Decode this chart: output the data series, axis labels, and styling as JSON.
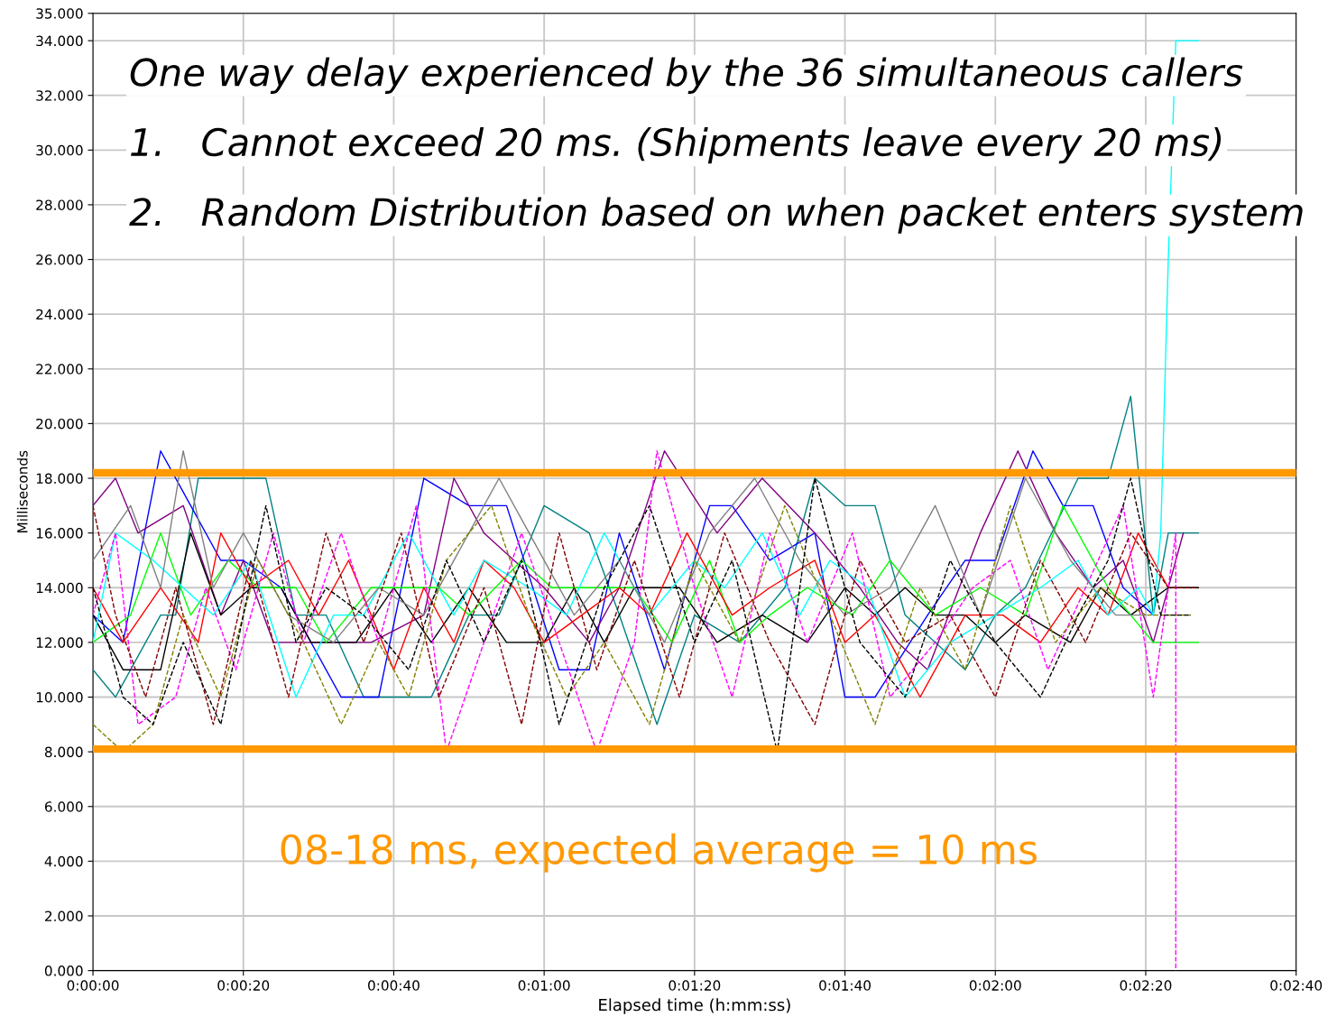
{
  "chart_data": {
    "type": "line",
    "title": "One way delay experienced by the 36 simultaneous callers",
    "annotations": [
      "1.   Cannot exceed 20 ms. (Shipments leave every 20 ms)",
      "2.   Random Distribution based on when packet enters system",
      "08-18 ms, expected average = 10 ms"
    ],
    "xlabel": "Elapsed time (h:mm:ss)",
    "ylabel": "Milliseconds",
    "xlim": [
      0,
      160
    ],
    "xticks": [
      {
        "value": 0,
        "label": "0:00:00"
      },
      {
        "value": 20,
        "label": "0:00:20"
      },
      {
        "value": 40,
        "label": "0:00:40"
      },
      {
        "value": 60,
        "label": "0:01:00"
      },
      {
        "value": 80,
        "label": "0:01:20"
      },
      {
        "value": 100,
        "label": "0:01:40"
      },
      {
        "value": 120,
        "label": "0:02:00"
      },
      {
        "value": 140,
        "label": "0:02:20"
      },
      {
        "value": 160,
        "label": "0:02:40"
      }
    ],
    "ylim": [
      0,
      35
    ],
    "yticks": [
      {
        "value": 0,
        "label": "0.000"
      },
      {
        "value": 2,
        "label": "2.000"
      },
      {
        "value": 4,
        "label": "4.000"
      },
      {
        "value": 6,
        "label": "6.000"
      },
      {
        "value": 8,
        "label": "8.000"
      },
      {
        "value": 10,
        "label": "10.000"
      },
      {
        "value": 12,
        "label": "12.000"
      },
      {
        "value": 14,
        "label": "14.000"
      },
      {
        "value": 16,
        "label": "16.000"
      },
      {
        "value": 18,
        "label": "18.000"
      },
      {
        "value": 20,
        "label": "20.000"
      },
      {
        "value": 22,
        "label": "22.000"
      },
      {
        "value": 24,
        "label": "24.000"
      },
      {
        "value": 26,
        "label": "26.000"
      },
      {
        "value": 28,
        "label": "28.000"
      },
      {
        "value": 30,
        "label": "30.000"
      },
      {
        "value": 32,
        "label": "32.000"
      },
      {
        "value": 34,
        "label": "34.000"
      },
      {
        "value": 35,
        "label": "35.000"
      }
    ],
    "grid": true,
    "legend": false,
    "ref_lines": [
      {
        "axis": "y",
        "value": 18.2,
        "color": "#ff9900"
      },
      {
        "axis": "y",
        "value": 8.1,
        "color": "#ff9900"
      }
    ],
    "series": [
      {
        "color": "#008080",
        "line_style": "solid",
        "x": [
          0,
          3,
          9,
          11,
          14,
          23,
          27,
          31,
          36,
          45,
          50,
          54,
          60,
          66,
          70,
          75,
          80,
          86,
          92,
          96,
          100,
          104,
          108,
          116,
          120,
          124,
          131,
          135,
          138,
          141,
          143,
          147
        ],
        "values": [
          11,
          10,
          13,
          13,
          18,
          18,
          13,
          13,
          10,
          10,
          13,
          13,
          17,
          16,
          13,
          9,
          13,
          12,
          14,
          18,
          17,
          17,
          13,
          11,
          13,
          14,
          18,
          18,
          21,
          13,
          16,
          16
        ]
      },
      {
        "color": "#0000ff",
        "line_style": "solid",
        "x": [
          0,
          4,
          9,
          13,
          17,
          20,
          25,
          33,
          38,
          44,
          50,
          55,
          62,
          66,
          70,
          76,
          82,
          85,
          90,
          96,
          100,
          104,
          111,
          116,
          120,
          125,
          129,
          133,
          137,
          141
        ],
        "values": [
          13,
          12,
          19,
          17,
          15,
          15,
          14,
          10,
          10,
          18,
          17,
          17,
          11,
          11,
          16,
          11,
          17,
          17,
          15,
          16,
          10,
          10,
          13,
          15,
          15,
          19,
          17,
          17,
          14,
          13
        ]
      },
      {
        "color": "#800080",
        "line_style": "solid",
        "x": [
          0,
          3,
          6,
          12,
          17,
          20,
          24,
          30,
          37,
          44,
          48,
          52,
          60,
          66,
          70,
          76,
          83,
          89,
          96,
          102,
          107,
          111,
          118,
          123,
          128,
          133,
          137,
          141,
          145
        ],
        "values": [
          17,
          18,
          16,
          17,
          13,
          15,
          12,
          12,
          12,
          13,
          18,
          16,
          14,
          12,
          14,
          19,
          16,
          18,
          16,
          14,
          12,
          11,
          16,
          19,
          16,
          14,
          15,
          12,
          16
        ]
      },
      {
        "color": "#000000",
        "line_style": "solid",
        "x": [
          0,
          4,
          9,
          13,
          17,
          21,
          25,
          29,
          35,
          40,
          45,
          50,
          55,
          60,
          64,
          68,
          72,
          78,
          83,
          89,
          95,
          100,
          104,
          108,
          112,
          116,
          120,
          124,
          130,
          134,
          138,
          143,
          147
        ],
        "values": [
          13,
          11,
          11,
          16,
          13,
          14,
          14,
          12,
          12,
          14,
          12,
          14,
          12,
          12,
          14,
          12,
          14,
          14,
          12,
          13,
          12,
          14,
          13,
          14,
          13,
          13,
          12,
          13,
          12,
          14,
          13,
          14,
          14
        ]
      },
      {
        "color": "#00ff00",
        "line_style": "solid",
        "x": [
          0,
          5,
          9,
          13,
          18,
          22,
          27,
          31,
          37,
          41,
          46,
          50,
          57,
          61,
          66,
          72,
          77,
          82,
          86,
          90,
          95,
          101,
          106,
          112,
          118,
          124,
          129,
          135,
          141,
          147
        ],
        "values": [
          12,
          13,
          16,
          13,
          15,
          14,
          14,
          12,
          14,
          14,
          14,
          13,
          15,
          14,
          14,
          14,
          12,
          15,
          12,
          13,
          14,
          13,
          15,
          13,
          14,
          13,
          17,
          14,
          12,
          12
        ]
      },
      {
        "color": "#ff0000",
        "line_style": "solid",
        "x": [
          0,
          4,
          9,
          14,
          17,
          21,
          26,
          30,
          34,
          40,
          44,
          48,
          52,
          56,
          60,
          65,
          70,
          74,
          79,
          85,
          90,
          96,
          100,
          104,
          110,
          116,
          121,
          126,
          131,
          135,
          139,
          143
        ],
        "values": [
          14,
          12,
          14,
          12,
          16,
          14,
          15,
          13,
          15,
          11,
          14,
          12,
          15,
          14,
          12,
          13,
          14,
          13,
          16,
          13,
          14,
          15,
          12,
          13,
          10,
          13,
          13,
          12,
          14,
          13,
          16,
          14
        ]
      },
      {
        "color": "#00ffff",
        "line_style": "solid",
        "x": [
          0,
          3,
          8,
          12,
          16,
          21,
          27,
          32,
          36,
          42,
          48,
          52,
          58,
          63,
          68,
          74,
          80,
          84,
          89,
          94,
          98,
          103,
          108,
          114,
          120,
          126,
          131,
          135,
          139,
          141,
          142,
          143,
          144,
          147
        ],
        "values": [
          12,
          16,
          15,
          14,
          13,
          15,
          10,
          13,
          13,
          16,
          13,
          15,
          14,
          13,
          16,
          13,
          15,
          14,
          16,
          13,
          15,
          14,
          10,
          12,
          13,
          14,
          15,
          13,
          14,
          13,
          16,
          26,
          34,
          34
        ]
      },
      {
        "color": "#ff00ff",
        "line_style": "dashed",
        "x": [
          0,
          3,
          6,
          11,
          15,
          19,
          24,
          28,
          33,
          38,
          43,
          47,
          52,
          57,
          62,
          67,
          72,
          75,
          80,
          85,
          90,
          95,
          101,
          106,
          112,
          117,
          122,
          127,
          132,
          137,
          141,
          144,
          144
        ],
        "values": [
          13,
          16,
          9,
          10,
          14,
          11,
          16,
          12,
          16,
          12,
          17,
          8,
          12,
          16,
          12,
          8,
          12,
          19,
          14,
          10,
          16,
          12,
          16,
          10,
          12,
          14,
          15,
          11,
          14,
          17,
          10,
          16,
          0
        ]
      },
      {
        "color": "#808080",
        "line_style": "solid",
        "x": [
          0,
          5,
          9,
          12,
          16,
          20,
          26,
          32,
          38,
          44,
          50,
          54,
          58,
          64,
          70,
          76,
          82,
          88,
          94,
          100,
          106,
          112,
          118,
          124,
          130,
          136,
          140
        ],
        "values": [
          15,
          17,
          14,
          19,
          14,
          16,
          13,
          12,
          14,
          13,
          16,
          18,
          16,
          13,
          15,
          12,
          16,
          18,
          15,
          13,
          14,
          17,
          13,
          18,
          15,
          13,
          13
        ]
      },
      {
        "color": "#800000",
        "line_style": "dashed",
        "x": [
          0,
          3,
          7,
          11,
          16,
          21,
          26,
          31,
          36,
          41,
          46,
          52,
          57,
          62,
          67,
          72,
          78,
          84,
          90,
          96,
          102,
          108,
          114,
          120,
          126,
          132,
          138,
          143,
          147
        ],
        "values": [
          17,
          13,
          10,
          14,
          9,
          15,
          10,
          16,
          12,
          16,
          10,
          14,
          9,
          16,
          11,
          15,
          10,
          16,
          12,
          9,
          15,
          12,
          13,
          10,
          15,
          12,
          16,
          14,
          14
        ]
      },
      {
        "color": "#808000",
        "line_style": "dashed",
        "x": [
          0,
          4,
          8,
          12,
          17,
          22,
          28,
          33,
          38,
          42,
          47,
          53,
          58,
          63,
          68,
          74,
          80,
          86,
          92,
          98,
          104,
          110,
          116,
          122,
          128,
          134,
          140,
          146
        ],
        "values": [
          9,
          8,
          9,
          13,
          10,
          15,
          12,
          9,
          12,
          10,
          15,
          17,
          13,
          10,
          12,
          9,
          15,
          12,
          17,
          13,
          9,
          14,
          11,
          17,
          12,
          14,
          13,
          13
        ]
      },
      {
        "color": "#000000",
        "line_style": "dashed",
        "x": [
          0,
          4,
          8,
          12,
          17,
          23,
          27,
          31,
          36,
          42,
          47,
          52,
          57,
          62,
          68,
          74,
          80,
          85,
          91,
          96,
          102,
          108,
          114,
          120,
          126,
          131,
          135,
          138,
          142,
          146
        ],
        "values": [
          14,
          10,
          9,
          12,
          9,
          17,
          12,
          14,
          13,
          11,
          15,
          12,
          15,
          9,
          14,
          17,
          12,
          15,
          8,
          18,
          12,
          10,
          15,
          12,
          10,
          13,
          15,
          18,
          13,
          13
        ]
      }
    ]
  }
}
